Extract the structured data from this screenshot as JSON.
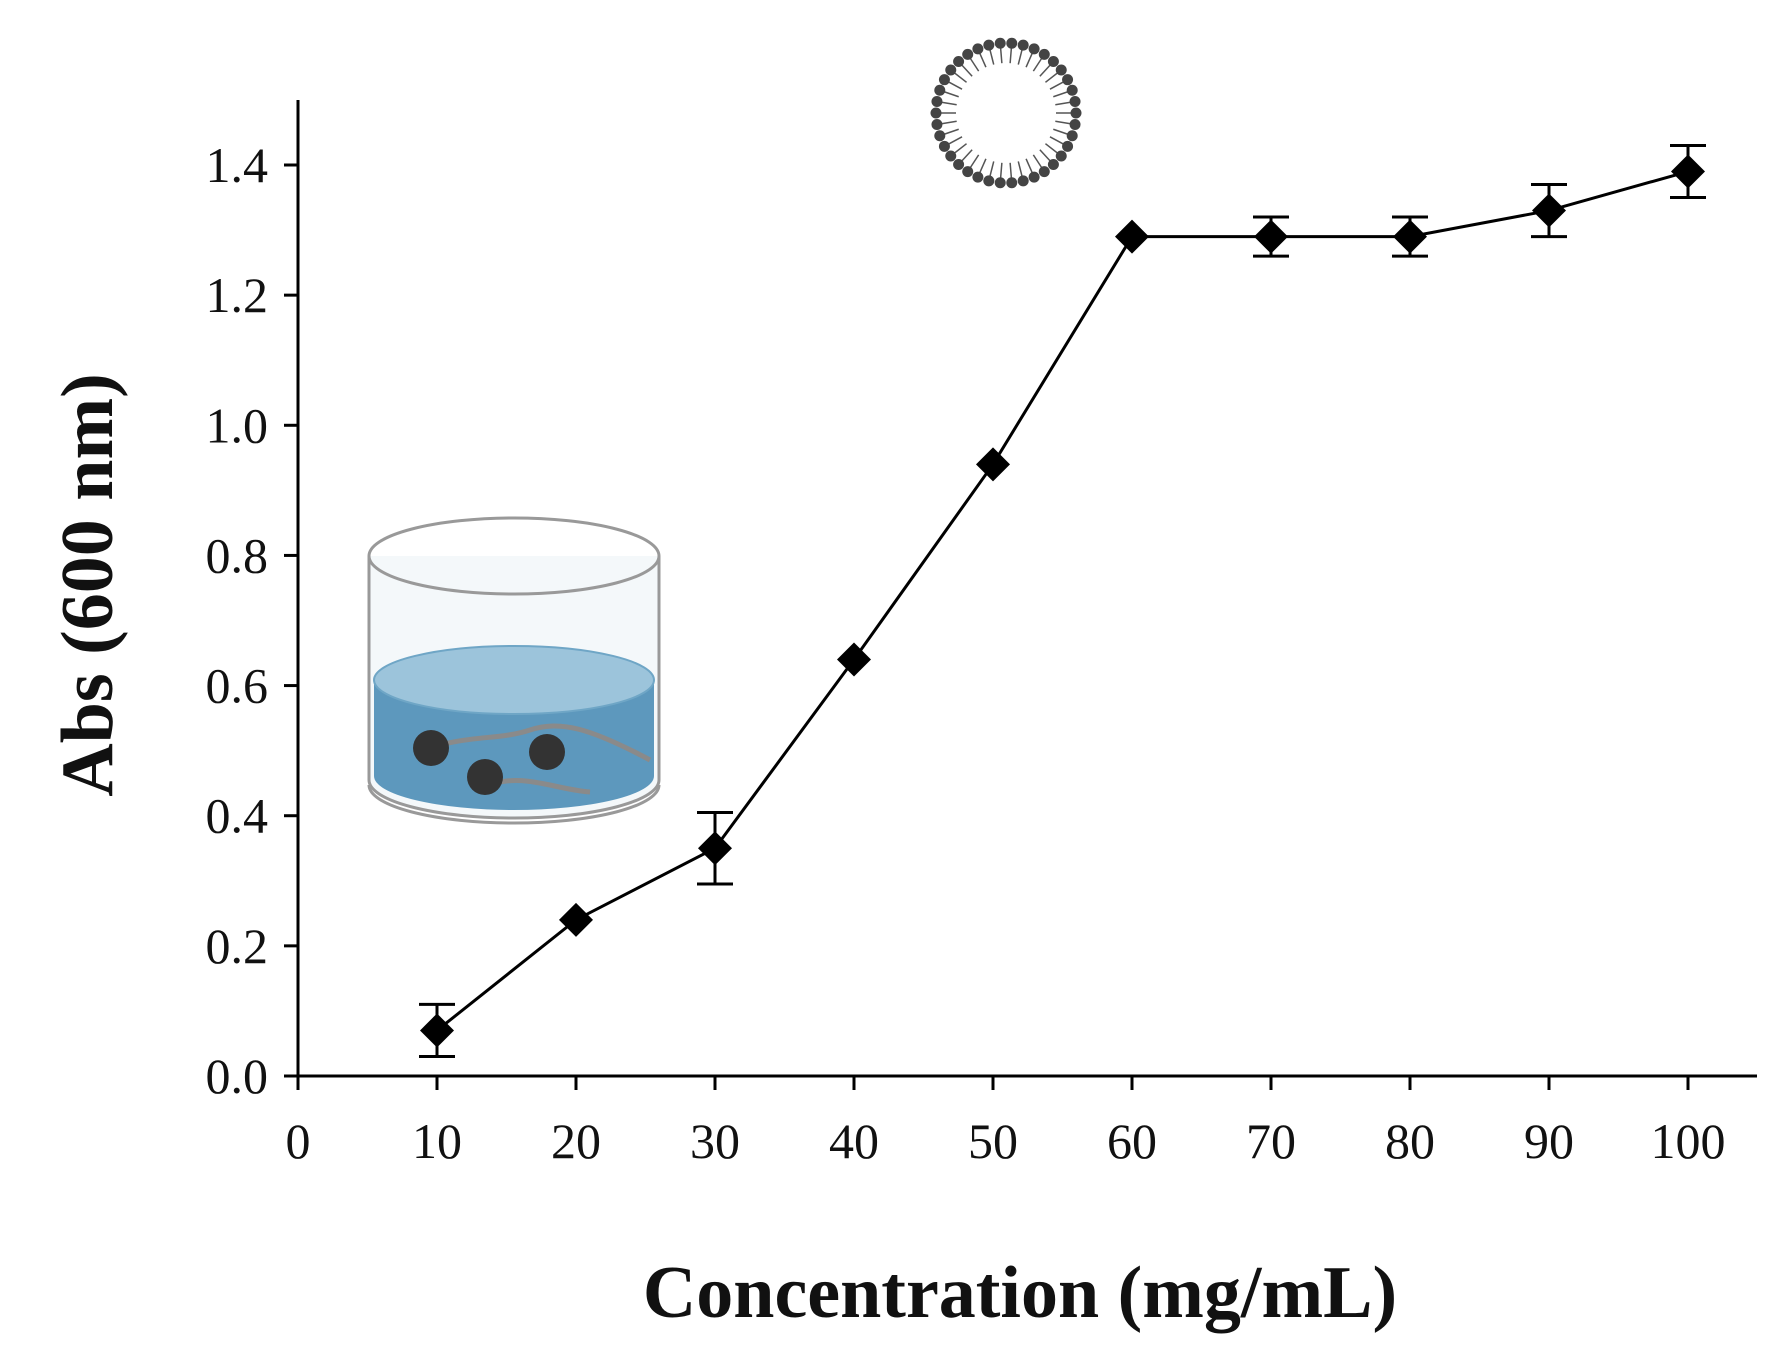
{
  "chart_data": {
    "type": "line",
    "title": "",
    "xlabel": "Concentration (mg/mL)",
    "ylabel": "Abs (600 nm)",
    "xlim": [
      0,
      105
    ],
    "ylim": [
      0,
      1.4
    ],
    "x_ticks": [
      0,
      10,
      20,
      30,
      40,
      50,
      60,
      70,
      80,
      90,
      100
    ],
    "x_tick_labels": [
      "0",
      "10",
      "20",
      "30",
      "40",
      "50",
      "60",
      "70",
      "80",
      "90",
      "100"
    ],
    "y_ticks": [
      0.0,
      0.2,
      0.4,
      0.6,
      0.8,
      1.0,
      1.2,
      1.4
    ],
    "y_tick_labels": [
      "0.0",
      "0.2",
      "0.4",
      "0.6",
      "0.8",
      "1.0",
      "1.2",
      "1.4"
    ],
    "grid": false,
    "legend": "none",
    "series": [
      {
        "marker": "diamond",
        "color": "#000000",
        "x": [
          10,
          20,
          30,
          40,
          50,
          60,
          70,
          80,
          90,
          100
        ],
        "y": [
          0.07,
          0.24,
          0.35,
          0.64,
          0.94,
          1.29,
          1.29,
          1.29,
          1.33,
          1.39
        ],
        "error": [
          0.04,
          0.0,
          0.055,
          0.0,
          0.0,
          0.0,
          0.03,
          0.03,
          0.04,
          0.04
        ]
      }
    ]
  },
  "illustrations": {
    "beaker_icon": "beaker-with-particles-icon",
    "liposome_icon": "liposome-vesicle-icon",
    "liquid_color": "#5d98bd",
    "liquid_top_color": "#9cc4db",
    "particle_color": "#333333",
    "glass_stroke": "#999999"
  }
}
